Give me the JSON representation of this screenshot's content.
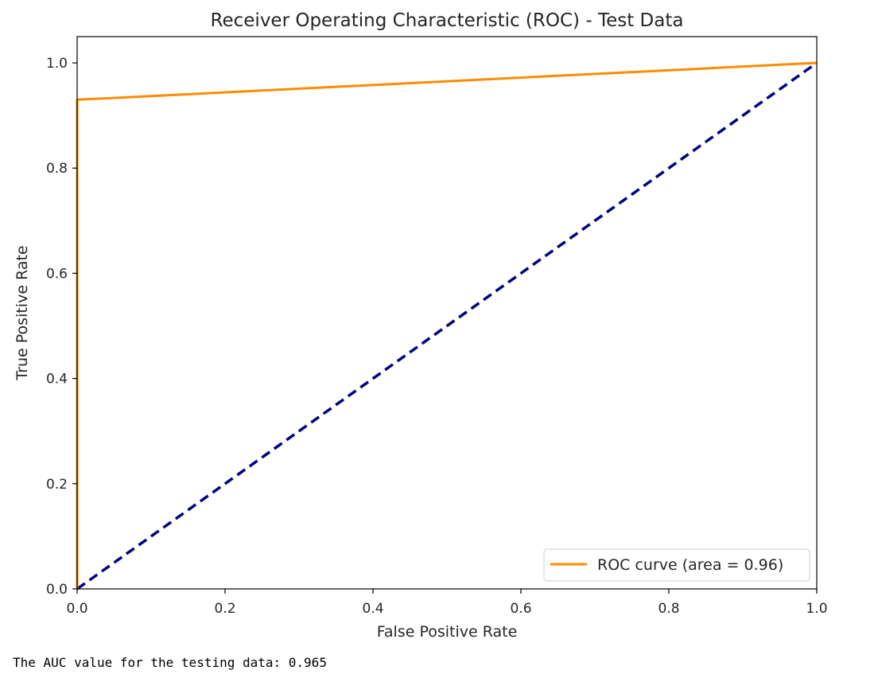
{
  "chart_data": {
    "type": "line",
    "title": "Receiver Operating Characteristic (ROC) - Test Data",
    "xlabel": "False Positive Rate",
    "ylabel": "True Positive Rate",
    "xlim": [
      0.0,
      1.0
    ],
    "ylim": [
      0.0,
      1.05
    ],
    "x_ticks": [
      0.0,
      0.2,
      0.4,
      0.6,
      0.8,
      1.0
    ],
    "x_tick_labels": [
      "0.0",
      "0.2",
      "0.4",
      "0.6",
      "0.8",
      "1.0"
    ],
    "y_ticks": [
      0.0,
      0.2,
      0.4,
      0.6,
      0.8,
      1.0
    ],
    "y_tick_labels": [
      "0.0",
      "0.2",
      "0.4",
      "0.6",
      "0.8",
      "1.0"
    ],
    "grid": false,
    "legend_position": "lower-right",
    "series": [
      {
        "name": "ROC curve (area = 0.96)",
        "color": "#ff8c00",
        "style": "solid",
        "x": [
          0.0,
          0.0,
          1.0
        ],
        "y": [
          0.0,
          0.93,
          1.0
        ]
      },
      {
        "color": "#000080",
        "style": "dashed",
        "x": [
          0.0,
          1.0
        ],
        "y": [
          0.0,
          1.0
        ]
      }
    ]
  },
  "output": {
    "text": "The AUC value for the testing data: 0.965"
  }
}
